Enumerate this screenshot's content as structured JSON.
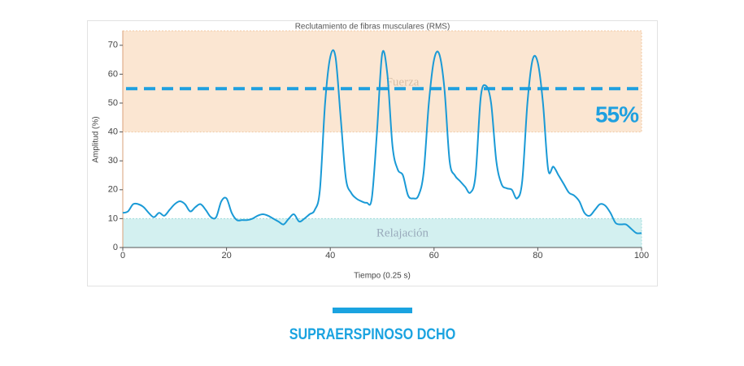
{
  "chart_data": {
    "type": "line",
    "title": "Reclutamiento de fibras musculares (RMS)",
    "x_label": "Tiempo (0.25 s)",
    "y_label": "Amplitud (%)",
    "x": [
      0,
      1,
      2,
      3,
      4,
      5,
      6,
      7,
      8,
      9,
      10,
      11,
      12,
      13,
      14,
      15,
      16,
      17,
      18,
      19,
      20,
      21,
      22,
      23,
      24,
      25,
      26,
      27,
      28,
      29,
      30,
      31,
      32,
      33,
      34,
      35,
      36,
      37,
      38,
      39,
      40,
      41,
      42,
      43,
      44,
      45,
      46,
      47,
      48,
      49,
      50,
      51,
      52,
      53,
      54,
      55,
      56,
      57,
      58,
      59,
      60,
      61,
      62,
      63,
      64,
      65,
      66,
      67,
      68,
      69,
      70,
      71,
      72,
      73,
      74,
      75,
      76,
      77,
      78,
      79,
      80,
      81,
      82,
      83,
      84,
      85,
      86,
      87,
      88,
      89,
      90,
      91,
      92,
      93,
      94,
      95,
      96,
      97,
      98,
      99,
      100
    ],
    "series": [
      {
        "color": "#1a9ad6",
        "values": [
          12,
          12.5,
          15,
          15,
          14,
          12,
          10.5,
          12,
          11,
          13,
          15,
          16,
          15,
          12.5,
          14,
          15,
          13,
          10.5,
          10.5,
          16,
          17,
          12,
          9.5,
          9.5,
          9.5,
          10,
          11,
          11.5,
          11,
          10,
          9,
          8,
          10,
          11.5,
          9,
          10,
          11.5,
          13,
          20,
          50,
          66,
          66,
          45,
          24,
          19,
          17,
          16,
          15.5,
          17,
          40,
          67,
          60,
          35,
          27,
          25,
          18,
          17,
          18,
          26,
          50,
          65,
          67,
          55,
          30,
          25,
          23,
          21,
          19,
          25,
          52,
          56,
          50,
          30,
          22,
          20.5,
          20,
          17,
          23,
          50,
          65,
          64,
          50,
          27,
          28,
          25,
          22,
          19,
          18,
          16,
          12,
          11,
          13,
          15,
          14.5,
          12,
          8.5,
          8,
          8,
          6.5,
          5,
          5
        ]
      }
    ],
    "bands": [
      {
        "from": 40,
        "to": 75,
        "label": "Fuerza",
        "color": "#fbe6d2"
      },
      {
        "from": 0,
        "to": 10,
        "label": "Relajación",
        "color": "#d3f0f0"
      }
    ],
    "threshold": {
      "value": 55,
      "label": "55%",
      "color": "#1ea0e0"
    },
    "xlim": [
      0,
      100
    ],
    "xticks": [
      0,
      20,
      40,
      60,
      80,
      100
    ],
    "ylim": [
      0,
      75
    ],
    "yticks": [
      0,
      10,
      20,
      30,
      40,
      50,
      60,
      70
    ]
  },
  "caption": "SUPRAERSPINOSO DCHO"
}
